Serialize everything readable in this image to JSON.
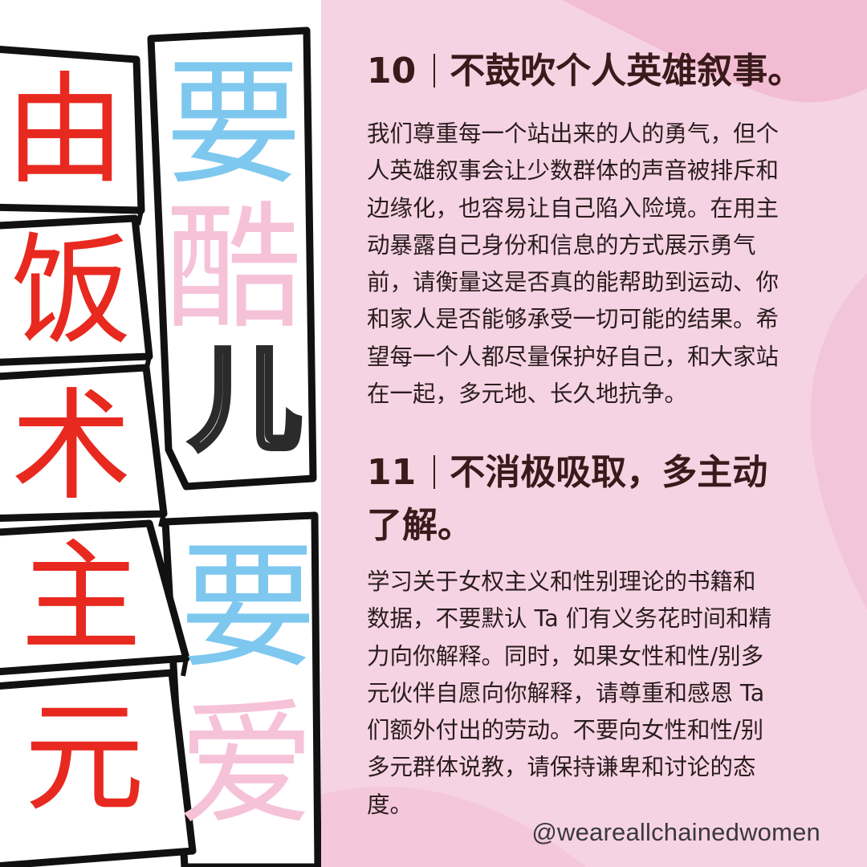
{
  "colors": {
    "panel_background": "#f6d3e3",
    "blob_accent": "#f2bdd3",
    "heading_text": "#3a1a1a",
    "body_text": "#2a1d1d",
    "red_ink": "#e8291f",
    "blue_ink": "#7ec8ef",
    "pink_ink": "#f6c2d7"
  },
  "artwork": {
    "column_left": [
      "由",
      "饭",
      "术",
      "主",
      "元"
    ],
    "column_right": [
      "要",
      "酷",
      "儿",
      "要",
      "爱"
    ]
  },
  "sections": [
    {
      "number": "10",
      "title": "不鼓吹个人英雄叙事。",
      "body": "我们尊重每一个站出来的人的勇气，但个\n人英雄叙事会让少数群体的声音被排斥和\n边缘化，也容易让自己陷入险境。在用主\n动暴露自己身份和信息的方式展示勇气\n前，请衡量这是否真的能帮助到运动、你\n和家人是否能够承受一切可能的结果。希\n望每一个人都尽量保护好自己，和大家站\n在一起，多元地、长久地抗争。"
    },
    {
      "number": "11",
      "title": "不消极吸取，多主动\n了解。",
      "body": "学习关于女权主义和性别理论的书籍和\n数据，不要默认 Ta 们有义务花时间和精\n力向你解释。同时，如果女性和性/别多\n元伙伴自愿向你解释，请尊重和感恩 Ta\n们额外付出的劳动。不要向女性和性/别\n多元群体说教，请保持谦卑和讨论的态\n度。"
    }
  ],
  "credit": "@weareallchainedwomen"
}
